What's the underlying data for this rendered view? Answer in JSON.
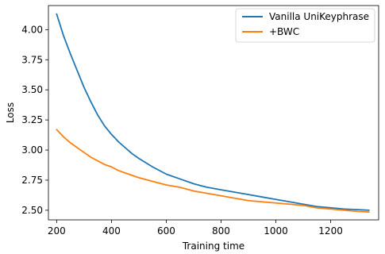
{
  "chart_data": {
    "type": "line",
    "title": "",
    "xlabel": "Training time",
    "ylabel": "Loss",
    "xlim": [
      170,
      1375
    ],
    "ylim": [
      2.42,
      4.2
    ],
    "xticks": [
      200,
      400,
      600,
      800,
      1000,
      1200
    ],
    "yticks": [
      2.5,
      2.75,
      3.0,
      3.25,
      3.5,
      3.75,
      4.0
    ],
    "xtick_labels": [
      "200",
      "400",
      "600",
      "800",
      "1000",
      "1200"
    ],
    "ytick_labels": [
      "2.50",
      "2.75",
      "3.00",
      "3.25",
      "3.50",
      "3.75",
      "4.00"
    ],
    "grid": false,
    "legend_position": "top-right",
    "series": [
      {
        "name": "Vanilla UniKeyphrase",
        "color": "#1f77b4",
        "x": [
          200,
          225,
          250,
          275,
          300,
          325,
          350,
          375,
          400,
          425,
          450,
          475,
          500,
          550,
          600,
          650,
          700,
          750,
          800,
          850,
          900,
          950,
          1000,
          1050,
          1100,
          1150,
          1200,
          1250,
          1300,
          1340
        ],
        "y": [
          4.13,
          3.95,
          3.8,
          3.66,
          3.52,
          3.4,
          3.29,
          3.2,
          3.13,
          3.07,
          3.02,
          2.97,
          2.93,
          2.86,
          2.8,
          2.76,
          2.72,
          2.69,
          2.67,
          2.65,
          2.63,
          2.61,
          2.59,
          2.57,
          2.55,
          2.53,
          2.52,
          2.51,
          2.505,
          2.5
        ]
      },
      {
        "name": "+BWC",
        "color": "#ff7f0e",
        "x": [
          200,
          225,
          250,
          275,
          300,
          325,
          350,
          375,
          400,
          425,
          450,
          475,
          500,
          550,
          600,
          650,
          700,
          750,
          800,
          850,
          900,
          950,
          1000,
          1050,
          1100,
          1150,
          1200,
          1250,
          1300,
          1340
        ],
        "y": [
          3.17,
          3.11,
          3.06,
          3.02,
          2.98,
          2.94,
          2.91,
          2.88,
          2.86,
          2.83,
          2.81,
          2.79,
          2.77,
          2.74,
          2.71,
          2.69,
          2.66,
          2.64,
          2.62,
          2.6,
          2.58,
          2.57,
          2.56,
          2.55,
          2.54,
          2.52,
          2.51,
          2.5,
          2.49,
          2.485
        ]
      }
    ]
  }
}
